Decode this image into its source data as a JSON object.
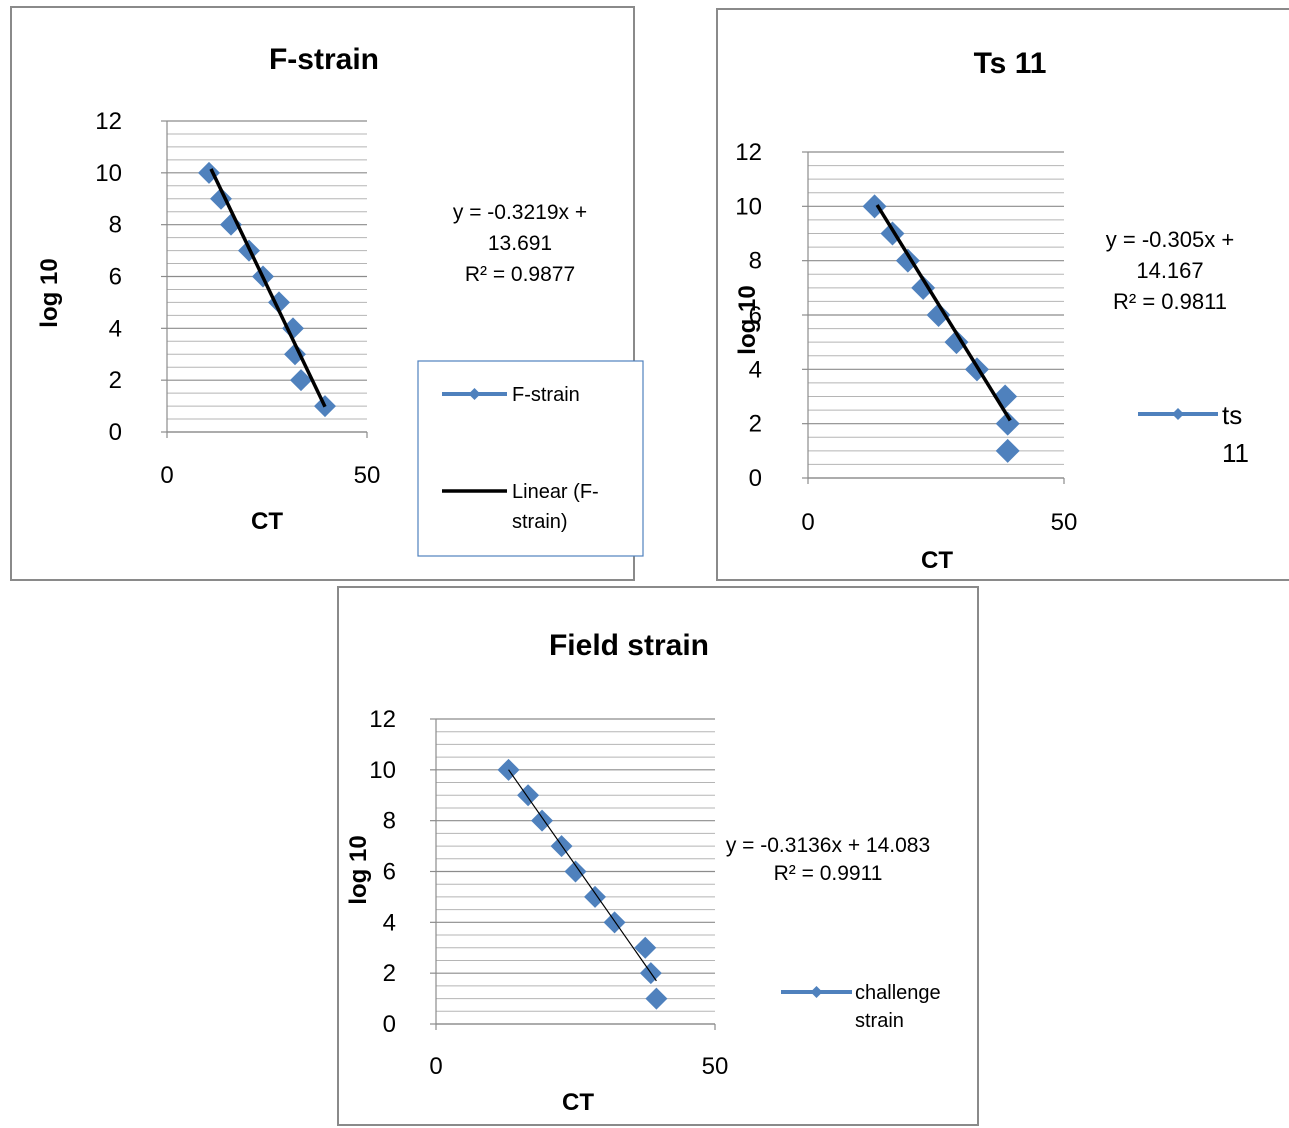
{
  "chart_data": [
    {
      "type": "scatter",
      "title": "F-strain",
      "xlabel": "CT",
      "ylabel": "log 10",
      "xlim": [
        0,
        50
      ],
      "ylim": [
        0,
        12
      ],
      "xticks": [
        "0",
        "50"
      ],
      "yticks": [
        "0",
        "2",
        "4",
        "6",
        "8",
        "10",
        "12"
      ],
      "grid": "horizontal minor lines",
      "series": [
        {
          "name": "F-strain",
          "x": [
            10.5,
            13.5,
            16,
            20.5,
            24,
            28,
            31.5,
            32,
            33.5,
            39.5
          ],
          "y": [
            10,
            9,
            8,
            7,
            6,
            5,
            4,
            3,
            2,
            1
          ],
          "color": "#4f81bd",
          "marker": "diamond"
        }
      ],
      "trendline": {
        "name": "Linear (F-strain)",
        "slope": -0.3219,
        "intercept": 13.691,
        "x_range": [
          11,
          39.5
        ],
        "color": "#000000"
      },
      "equation": [
        "y = -0.3219x +",
        "13.691",
        "R² = 0.9877"
      ],
      "legend": [
        "F-strain",
        "Linear (F-",
        "strain)"
      ],
      "legend_position": "right"
    },
    {
      "type": "scatter",
      "title": "Ts 11",
      "xlabel": "CT",
      "ylabel": "log 10",
      "xlim": [
        0,
        50
      ],
      "ylim": [
        0,
        12
      ],
      "xticks": [
        "0",
        "50"
      ],
      "yticks": [
        "0",
        "2",
        "4",
        "6",
        "8",
        "10",
        "12"
      ],
      "grid": "horizontal minor lines",
      "series": [
        {
          "name": "ts 11",
          "x": [
            13,
            16.5,
            19.5,
            22.5,
            25.5,
            29,
            33,
            38.5,
            39,
            39
          ],
          "y": [
            10,
            9,
            8,
            7,
            6,
            5,
            4,
            3,
            2,
            1
          ],
          "color": "#4f81bd",
          "marker": "diamond"
        }
      ],
      "trendline": {
        "name": "",
        "slope": -0.305,
        "intercept": 14.167,
        "x_range": [
          13.5,
          39.5
        ],
        "color": "#000000"
      },
      "equation": [
        "y = -0.305x +",
        "14.167",
        "R² = 0.9811"
      ],
      "legend": [
        "ts",
        "11"
      ],
      "legend_position": "right"
    },
    {
      "type": "scatter",
      "title": "Field  strain",
      "xlabel": "CT",
      "ylabel": "log 10",
      "xlim": [
        0,
        50
      ],
      "ylim": [
        0,
        12
      ],
      "xticks": [
        "0",
        "50"
      ],
      "yticks": [
        "0",
        "2",
        "4",
        "6",
        "8",
        "10",
        "12"
      ],
      "grid": "horizontal minor lines",
      "series": [
        {
          "name": "challenge strain",
          "x": [
            13,
            16.5,
            19,
            22.5,
            25,
            28.5,
            32,
            37.5,
            38.5,
            39.5
          ],
          "y": [
            10,
            9,
            8,
            7,
            6,
            5,
            4,
            3,
            2,
            1
          ],
          "color": "#4f81bd",
          "marker": "diamond"
        }
      ],
      "trendline": {
        "name": "",
        "slope": -0.3136,
        "intercept": 14.083,
        "x_range": [
          13,
          39.5
        ],
        "color": "#000000"
      },
      "equation": [
        "y = -0.3136x + 14.083",
        "R² = 0.9911"
      ],
      "legend": [
        "challenge",
        "strain"
      ],
      "legend_position": "right"
    }
  ]
}
